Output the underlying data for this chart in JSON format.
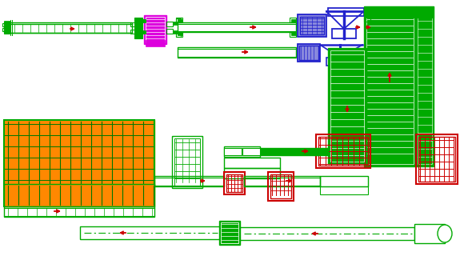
{
  "bg": "#ffffff",
  "G": "#00aa00",
  "R": "#cc0000",
  "B": "#2222cc",
  "M": "#dd00dd",
  "O": "#ff8800",
  "LB": "#8888dd",
  "DG": "#007700",
  "W": "#ffffff"
}
